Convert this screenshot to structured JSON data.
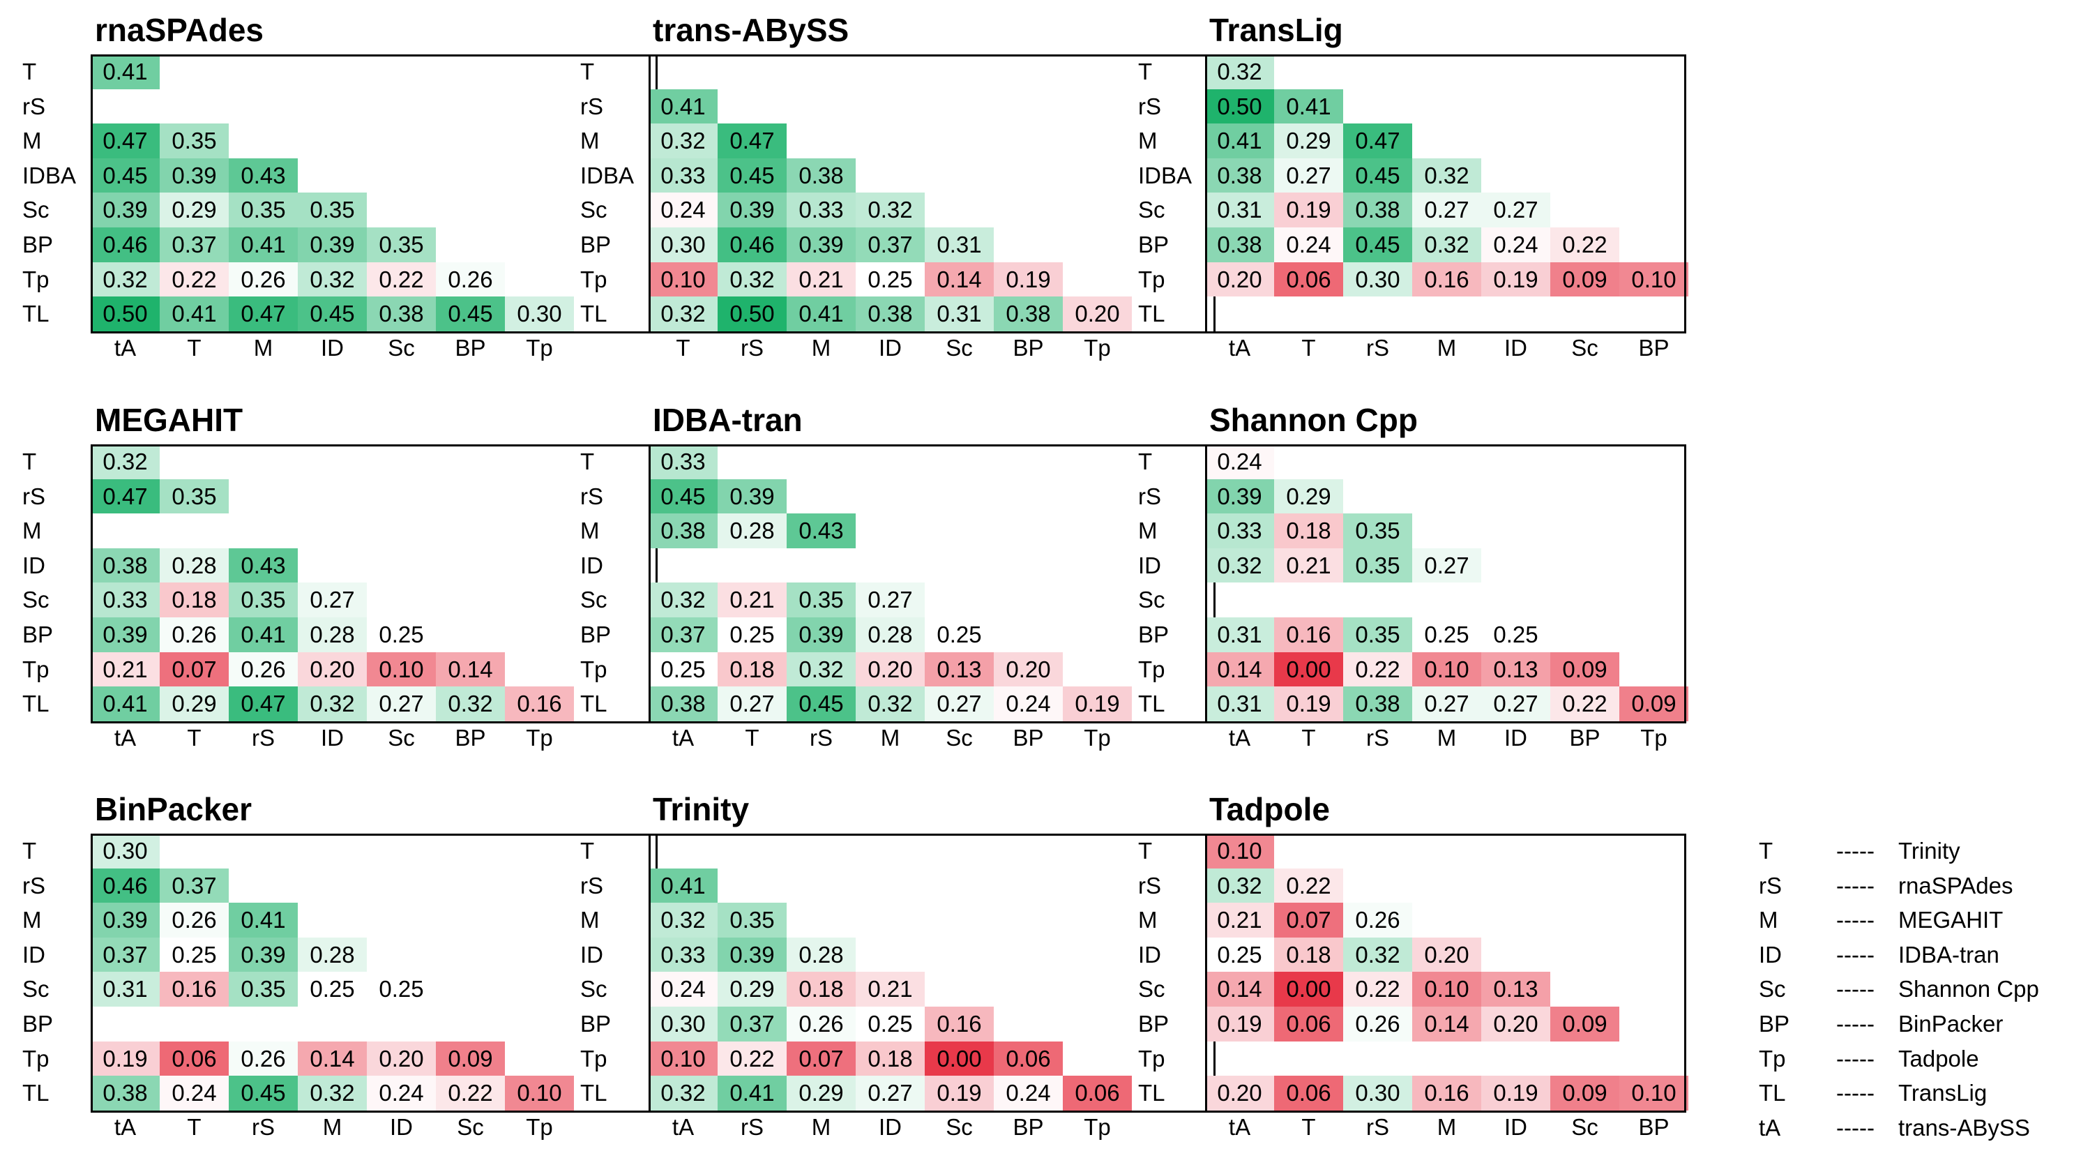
{
  "chart_data": {
    "type": "heatmap",
    "value_range": [
      0.0,
      0.5
    ],
    "colors": {
      "low": "#e8394a",
      "mid": "#ffffff",
      "high": "#1fb36c"
    },
    "panels": [
      {
        "title": "rnaSPAdes",
        "row_labels": [
          "T",
          "rS",
          "M",
          "IDBA",
          "Sc",
          "BP",
          "Tp",
          "TL"
        ],
        "col_labels": [
          "tA",
          "T",
          "M",
          "ID",
          "Sc",
          "BP",
          "Tp"
        ],
        "values": [
          [
            "0.41",
            null,
            null,
            null,
            null,
            null,
            null
          ],
          [
            null,
            null,
            null,
            null,
            null,
            null,
            null
          ],
          [
            "0.47",
            "0.35",
            null,
            null,
            null,
            null,
            null
          ],
          [
            "0.45",
            "0.39",
            "0.43",
            null,
            null,
            null,
            null
          ],
          [
            "0.39",
            "0.29",
            "0.35",
            "0.35",
            null,
            null,
            null
          ],
          [
            "0.46",
            "0.37",
            "0.41",
            "0.39",
            "0.35",
            null,
            null
          ],
          [
            "0.32",
            "0.22",
            "0.26",
            "0.32",
            "0.22",
            "0.26",
            null
          ],
          [
            "0.50",
            "0.41",
            "0.47",
            "0.45",
            "0.38",
            "0.45",
            "0.30"
          ]
        ]
      },
      {
        "title": "trans-ABySS",
        "row_labels": [
          "T",
          "rS",
          "M",
          "IDBA",
          "Sc",
          "BP",
          "Tp",
          "TL"
        ],
        "col_labels": [
          "T",
          "rS",
          "M",
          "ID",
          "Sc",
          "BP",
          "Tp"
        ],
        "values": [
          [
            null,
            null,
            null,
            null,
            null,
            null,
            null
          ],
          [
            "0.41",
            null,
            null,
            null,
            null,
            null,
            null
          ],
          [
            "0.32",
            "0.47",
            null,
            null,
            null,
            null,
            null
          ],
          [
            "0.33",
            "0.45",
            "0.38",
            null,
            null,
            null,
            null
          ],
          [
            "0.24",
            "0.39",
            "0.33",
            "0.32",
            null,
            null,
            null
          ],
          [
            "0.30",
            "0.46",
            "0.39",
            "0.37",
            "0.31",
            null,
            null
          ],
          [
            "0.10",
            "0.32",
            "0.21",
            "0.25",
            "0.14",
            "0.19",
            null
          ],
          [
            "0.32",
            "0.50",
            "0.41",
            "0.38",
            "0.31",
            "0.38",
            "0.20"
          ]
        ]
      },
      {
        "title": "TransLig",
        "row_labels": [
          "T",
          "rS",
          "M",
          "IDBA",
          "Sc",
          "BP",
          "Tp",
          "TL"
        ],
        "col_labels": [
          "tA",
          "T",
          "rS",
          "M",
          "ID",
          "Sc",
          "BP"
        ],
        "values": [
          [
            "0.32",
            null,
            null,
            null,
            null,
            null,
            null
          ],
          [
            "0.50",
            "0.41",
            null,
            null,
            null,
            null,
            null
          ],
          [
            "0.41",
            "0.29",
            "0.47",
            null,
            null,
            null,
            null
          ],
          [
            "0.38",
            "0.27",
            "0.45",
            "0.32",
            null,
            null,
            null
          ],
          [
            "0.31",
            "0.19",
            "0.38",
            "0.27",
            "0.27",
            null,
            null
          ],
          [
            "0.38",
            "0.24",
            "0.45",
            "0.32",
            "0.24",
            "0.22",
            null
          ],
          [
            "0.20",
            "0.06",
            "0.30",
            "0.16",
            "0.19",
            "0.09",
            "0.10"
          ],
          [
            null,
            null,
            null,
            null,
            null,
            null,
            null
          ]
        ]
      },
      {
        "title": "MEGAHIT",
        "row_labels": [
          "T",
          "rS",
          "M",
          "ID",
          "Sc",
          "BP",
          "Tp",
          "TL"
        ],
        "col_labels": [
          "tA",
          "T",
          "rS",
          "ID",
          "Sc",
          "BP",
          "Tp"
        ],
        "values": [
          [
            "0.32",
            null,
            null,
            null,
            null,
            null,
            null
          ],
          [
            "0.47",
            "0.35",
            null,
            null,
            null,
            null,
            null
          ],
          [
            null,
            null,
            null,
            null,
            null,
            null,
            null
          ],
          [
            "0.38",
            "0.28",
            "0.43",
            null,
            null,
            null,
            null
          ],
          [
            "0.33",
            "0.18",
            "0.35",
            "0.27",
            null,
            null,
            null
          ],
          [
            "0.39",
            "0.26",
            "0.41",
            "0.28",
            "0.25",
            null,
            null
          ],
          [
            "0.21",
            "0.07",
            "0.26",
            "0.20",
            "0.10",
            "0.14",
            null
          ],
          [
            "0.41",
            "0.29",
            "0.47",
            "0.32",
            "0.27",
            "0.32",
            "0.16"
          ]
        ]
      },
      {
        "title": "IDBA-tran",
        "row_labels": [
          "T",
          "rS",
          "M",
          "ID",
          "Sc",
          "BP",
          "Tp",
          "TL"
        ],
        "col_labels": [
          "tA",
          "T",
          "rS",
          "M",
          "Sc",
          "BP",
          "Tp"
        ],
        "values": [
          [
            "0.33",
            null,
            null,
            null,
            null,
            null,
            null
          ],
          [
            "0.45",
            "0.39",
            null,
            null,
            null,
            null,
            null
          ],
          [
            "0.38",
            "0.28",
            "0.43",
            null,
            null,
            null,
            null
          ],
          [
            null,
            null,
            null,
            null,
            null,
            null,
            null
          ],
          [
            "0.32",
            "0.21",
            "0.35",
            "0.27",
            null,
            null,
            null
          ],
          [
            "0.37",
            "0.25",
            "0.39",
            "0.28",
            "0.25",
            null,
            null
          ],
          [
            "0.25",
            "0.18",
            "0.32",
            "0.20",
            "0.13",
            "0.20",
            null
          ],
          [
            "0.38",
            "0.27",
            "0.45",
            "0.32",
            "0.27",
            "0.24",
            "0.19"
          ]
        ]
      },
      {
        "title": "Shannon Cpp",
        "row_labels": [
          "T",
          "rS",
          "M",
          "ID",
          "Sc",
          "BP",
          "Tp",
          "TL"
        ],
        "col_labels": [
          "tA",
          "T",
          "rS",
          "M",
          "ID",
          "BP",
          "Tp"
        ],
        "values": [
          [
            "0.24",
            null,
            null,
            null,
            null,
            null,
            null
          ],
          [
            "0.39",
            "0.29",
            null,
            null,
            null,
            null,
            null
          ],
          [
            "0.33",
            "0.18",
            "0.35",
            null,
            null,
            null,
            null
          ],
          [
            "0.32",
            "0.21",
            "0.35",
            "0.27",
            null,
            null,
            null
          ],
          [
            null,
            null,
            null,
            null,
            null,
            null,
            null
          ],
          [
            "0.31",
            "0.16",
            "0.35",
            "0.25",
            "0.25",
            null,
            null
          ],
          [
            "0.14",
            "0.00",
            "0.22",
            "0.10",
            "0.13",
            "0.09",
            null
          ],
          [
            "0.31",
            "0.19",
            "0.38",
            "0.27",
            "0.27",
            "0.22",
            "0.09"
          ]
        ]
      },
      {
        "title": "BinPacker",
        "row_labels": [
          "T",
          "rS",
          "M",
          "ID",
          "Sc",
          "BP",
          "Tp",
          "TL"
        ],
        "col_labels": [
          "tA",
          "T",
          "rS",
          "M",
          "ID",
          "Sc",
          "Tp"
        ],
        "values": [
          [
            "0.30",
            null,
            null,
            null,
            null,
            null,
            null
          ],
          [
            "0.46",
            "0.37",
            null,
            null,
            null,
            null,
            null
          ],
          [
            "0.39",
            "0.26",
            "0.41",
            null,
            null,
            null,
            null
          ],
          [
            "0.37",
            "0.25",
            "0.39",
            "0.28",
            null,
            null,
            null
          ],
          [
            "0.31",
            "0.16",
            "0.35",
            "0.25",
            "0.25",
            null,
            null
          ],
          [
            null,
            null,
            null,
            null,
            null,
            null,
            null
          ],
          [
            "0.19",
            "0.06",
            "0.26",
            "0.14",
            "0.20",
            "0.09",
            null
          ],
          [
            "0.38",
            "0.24",
            "0.45",
            "0.32",
            "0.24",
            "0.22",
            "0.10"
          ]
        ]
      },
      {
        "title": "Trinity",
        "row_labels": [
          "T",
          "rS",
          "M",
          "ID",
          "Sc",
          "BP",
          "Tp",
          "TL"
        ],
        "col_labels": [
          "tA",
          "rS",
          "M",
          "ID",
          "Sc",
          "BP",
          "Tp"
        ],
        "values": [
          [
            null,
            null,
            null,
            null,
            null,
            null,
            null
          ],
          [
            "0.41",
            null,
            null,
            null,
            null,
            null,
            null
          ],
          [
            "0.32",
            "0.35",
            null,
            null,
            null,
            null,
            null
          ],
          [
            "0.33",
            "0.39",
            "0.28",
            null,
            null,
            null,
            null
          ],
          [
            "0.24",
            "0.29",
            "0.18",
            "0.21",
            null,
            null,
            null
          ],
          [
            "0.30",
            "0.37",
            "0.26",
            "0.25",
            "0.16",
            null,
            null
          ],
          [
            "0.10",
            "0.22",
            "0.07",
            "0.18",
            "0.00",
            "0.06",
            null
          ],
          [
            "0.32",
            "0.41",
            "0.29",
            "0.27",
            "0.19",
            "0.24",
            "0.06"
          ]
        ]
      },
      {
        "title": "Tadpole",
        "row_labels": [
          "T",
          "rS",
          "M",
          "ID",
          "Sc",
          "BP",
          "Tp",
          "TL"
        ],
        "col_labels": [
          "tA",
          "T",
          "rS",
          "M",
          "ID",
          "Sc",
          "BP"
        ],
        "values": [
          [
            "0.10",
            null,
            null,
            null,
            null,
            null,
            null
          ],
          [
            "0.32",
            "0.22",
            null,
            null,
            null,
            null,
            null
          ],
          [
            "0.21",
            "0.07",
            "0.26",
            null,
            null,
            null,
            null
          ],
          [
            "0.25",
            "0.18",
            "0.32",
            "0.20",
            null,
            null,
            null
          ],
          [
            "0.14",
            "0.00",
            "0.22",
            "0.10",
            "0.13",
            null,
            null
          ],
          [
            "0.19",
            "0.06",
            "0.26",
            "0.14",
            "0.20",
            "0.09",
            null
          ],
          [
            null,
            null,
            null,
            null,
            null,
            null,
            null
          ],
          [
            "0.20",
            "0.06",
            "0.30",
            "0.16",
            "0.19",
            "0.09",
            "0.10"
          ]
        ]
      }
    ]
  },
  "legend": {
    "separator": "-----",
    "items": [
      {
        "abbr": "T",
        "name": "Trinity"
      },
      {
        "abbr": "rS",
        "name": "rnaSPAdes"
      },
      {
        "abbr": "M",
        "name": "MEGAHIT"
      },
      {
        "abbr": "ID",
        "name": "IDBA-tran"
      },
      {
        "abbr": "Sc",
        "name": "Shannon Cpp"
      },
      {
        "abbr": "BP",
        "name": "BinPacker"
      },
      {
        "abbr": "Tp",
        "name": "Tadpole"
      },
      {
        "abbr": "TL",
        "name": "TransLig"
      },
      {
        "abbr": "tA",
        "name": "trans-ABySS"
      }
    ]
  }
}
